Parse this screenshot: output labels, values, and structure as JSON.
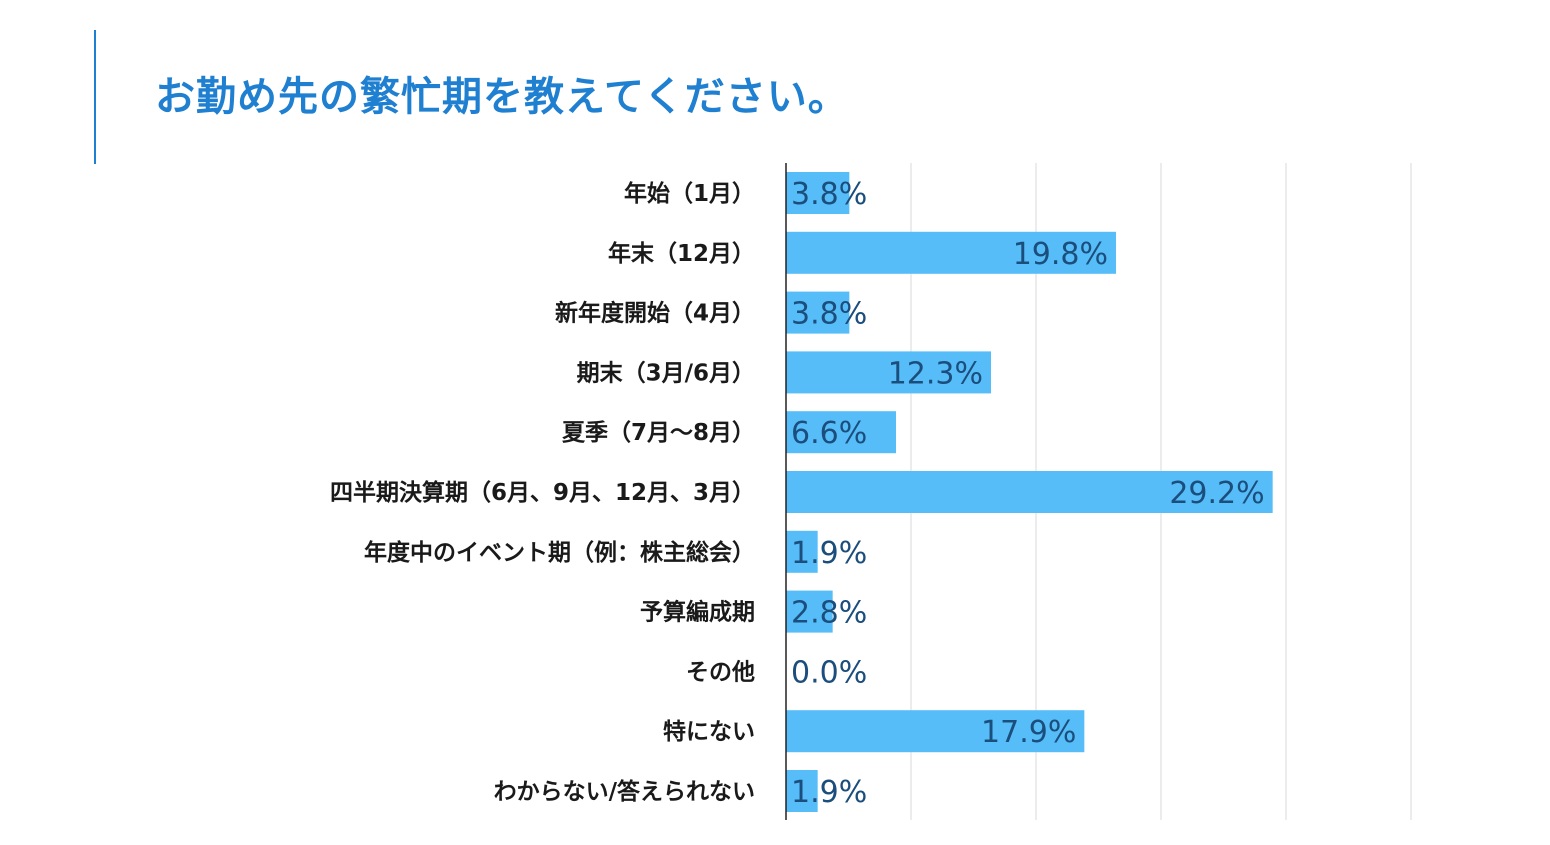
{
  "title": "お勤め先の繁忙期を教えてください。",
  "colors": {
    "accent": "#1f7fd0",
    "bar": "#56bdf8",
    "value_text": "#1b4e7c",
    "grid": "#d9d9d9"
  },
  "chart_data": {
    "type": "bar",
    "orientation": "horizontal",
    "title": "お勤め先の繁忙期を教えてください。",
    "categories": [
      "年始（1月）",
      "年末（12月）",
      "新年度開始（4月）",
      "期末（3月/6月）",
      "夏季（7月～8月）",
      "四半期決算期（6月、9月、12月、3月）",
      "年度中のイベント期（例：株主総会）",
      "予算編成期",
      "その他",
      "特にない",
      "わからない/答えられない"
    ],
    "values": [
      3.8,
      19.8,
      3.8,
      12.3,
      6.6,
      29.2,
      1.9,
      2.8,
      0.0,
      17.9,
      1.9
    ],
    "value_labels": [
      "3.8%",
      "19.8%",
      "3.8%",
      "12.3%",
      "6.6%",
      "29.2%",
      "1.9%",
      "2.8%",
      "0.0%",
      "17.9%",
      "1.9%"
    ],
    "unit": "%",
    "xlim": [
      0,
      37.5
    ],
    "gridlines": [
      0,
      7.5,
      15,
      22.5,
      30,
      37.5
    ],
    "grid": true,
    "legend": "none"
  }
}
